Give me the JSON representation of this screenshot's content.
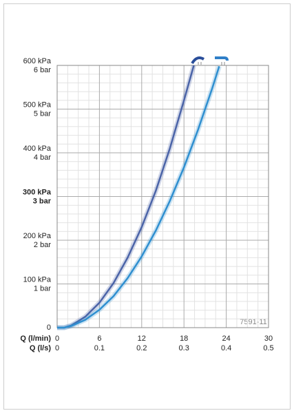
{
  "chart_data": {
    "type": "line",
    "xlabel": "Q (l/min)",
    "x2label": "Q (l/s)",
    "xlim": [
      0,
      30
    ],
    "xticks": [
      0,
      6,
      12,
      18,
      24,
      30
    ],
    "x2lim": [
      0,
      0.5
    ],
    "x2ticks": [
      0,
      0.1,
      0.2,
      0.3,
      0.4,
      0.5
    ],
    "ylim": [
      0,
      600
    ],
    "yticks": [
      0,
      {
        "value": 100,
        "label": "100 kPa"
      },
      {
        "value": 200,
        "label": "200 kPa"
      },
      {
        "value": 300,
        "label": "300 kPa"
      },
      {
        "value": 400,
        "label": "400 kPa"
      },
      {
        "value": 500,
        "label": "500 kPa"
      },
      {
        "value": 600,
        "label": "600 kPa"
      }
    ],
    "y2lim": [
      0,
      6
    ],
    "y2ticks": [
      {
        "value": 1,
        "label": "1 bar"
      },
      {
        "value": 2,
        "label": "2 bar"
      },
      {
        "value": 3,
        "label": "3 bar"
      },
      {
        "value": 4,
        "label": "4 bar"
      },
      {
        "value": 5,
        "label": "5 bar"
      },
      {
        "value": 6,
        "label": "6 bar"
      }
    ],
    "highlight_y": 300,
    "grid": true,
    "minor_grid": {
      "x": 4,
      "y": 5
    },
    "annotation": "7591-11",
    "series": [
      {
        "color": "#4b64a8",
        "x": [
          0,
          1,
          2,
          4,
          6,
          8,
          10,
          12,
          14,
          16,
          18,
          19.4
        ],
        "values": [
          0,
          0,
          5,
          25,
          57,
          102,
          160,
          230,
          313,
          410,
          520,
          600
        ]
      },
      {
        "color": "#2f8fd0",
        "x": [
          0,
          1,
          2,
          4,
          6,
          8,
          10,
          12,
          14,
          16,
          18,
          20,
          22,
          23
        ],
        "values": [
          0,
          0,
          4,
          18,
          41,
          72,
          113,
          163,
          222,
          290,
          367,
          453,
          547,
          598
        ]
      }
    ]
  }
}
